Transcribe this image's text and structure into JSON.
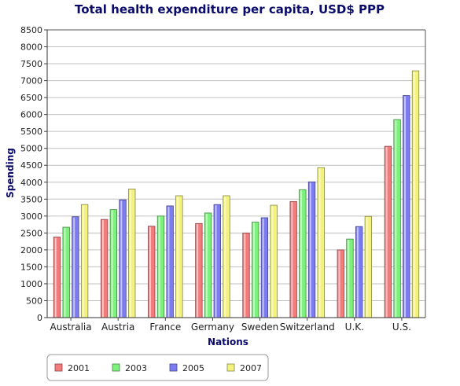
{
  "chart_data": {
    "type": "bar",
    "title": "Total health expenditure per capita, USD$ PPP",
    "xlabel": "Nations",
    "ylabel": "Spending",
    "categories": [
      "Australia",
      "Austria",
      "France",
      "Germany",
      "Sweden",
      "Switzerland",
      "U.K.",
      "U.S."
    ],
    "series": [
      {
        "name": "2001",
        "color": "#f27c7c",
        "values": [
          2380,
          2900,
          2700,
          2780,
          2500,
          3430,
          2000,
          5060
        ]
      },
      {
        "name": "2003",
        "color": "#7cf27c",
        "values": [
          2670,
          3190,
          3000,
          3090,
          2820,
          3780,
          2320,
          5850
        ]
      },
      {
        "name": "2005",
        "color": "#7c7cf2",
        "values": [
          2980,
          3480,
          3300,
          3340,
          2950,
          4010,
          2690,
          6560
        ]
      },
      {
        "name": "2007",
        "color": "#f2f27c",
        "values": [
          3340,
          3800,
          3600,
          3600,
          3320,
          4430,
          2990,
          7290
        ]
      }
    ],
    "ylim": [
      0,
      8500
    ],
    "ytick_step": 500,
    "grid": true,
    "legend": "bottom-left"
  }
}
